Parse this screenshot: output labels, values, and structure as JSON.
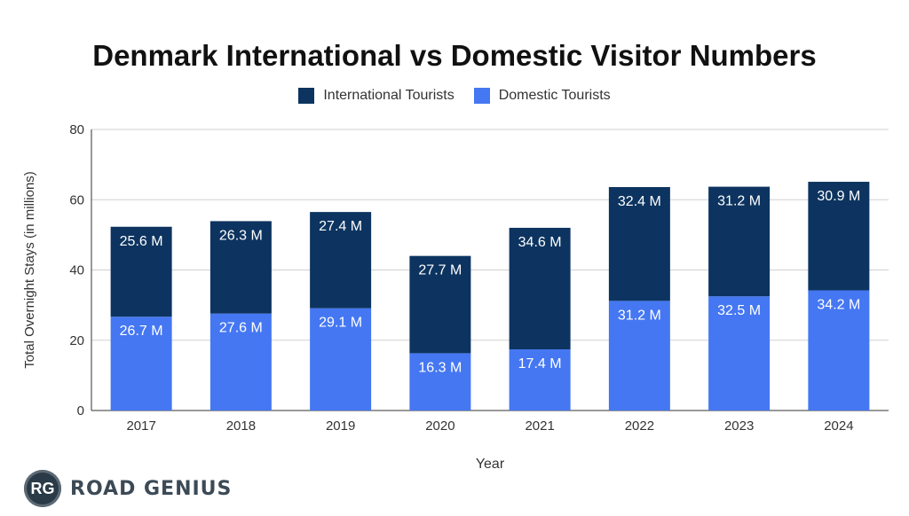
{
  "chart_data": {
    "type": "bar",
    "stacked": true,
    "title": "Denmark International vs Domestic Visitor Numbers",
    "xlabel": "Year",
    "ylabel": "Total Overnight Stays (in millions)",
    "ylim": [
      0,
      80
    ],
    "yticks": [
      0,
      20,
      40,
      60,
      80
    ],
    "grid": true,
    "legend_position": "top",
    "categories": [
      "2017",
      "2018",
      "2019",
      "2020",
      "2021",
      "2022",
      "2023",
      "2024"
    ],
    "series": [
      {
        "name": "Domestic Tourists",
        "color": "#4577f2",
        "values": [
          26.7,
          27.6,
          29.1,
          16.3,
          17.4,
          31.2,
          32.5,
          34.2
        ],
        "labels": [
          "26.7 M",
          "27.6 M",
          "29.1 M",
          "16.3 M",
          "17.4 M",
          "31.2 M",
          "32.5 M",
          "34.2 M"
        ]
      },
      {
        "name": "International Tourists",
        "color": "#0d3460",
        "values": [
          25.6,
          26.3,
          27.4,
          27.7,
          34.6,
          32.4,
          31.2,
          30.9
        ],
        "labels": [
          "25.6 M",
          "26.3 M",
          "27.4 M",
          "27.7 M",
          "34.6 M",
          "32.4 M",
          "31.2 M",
          "30.9 M"
        ]
      }
    ],
    "legend_order": [
      "International Tourists",
      "Domestic Tourists"
    ]
  },
  "logo": {
    "badge": "RG",
    "text": "ROAD GENIUS"
  }
}
